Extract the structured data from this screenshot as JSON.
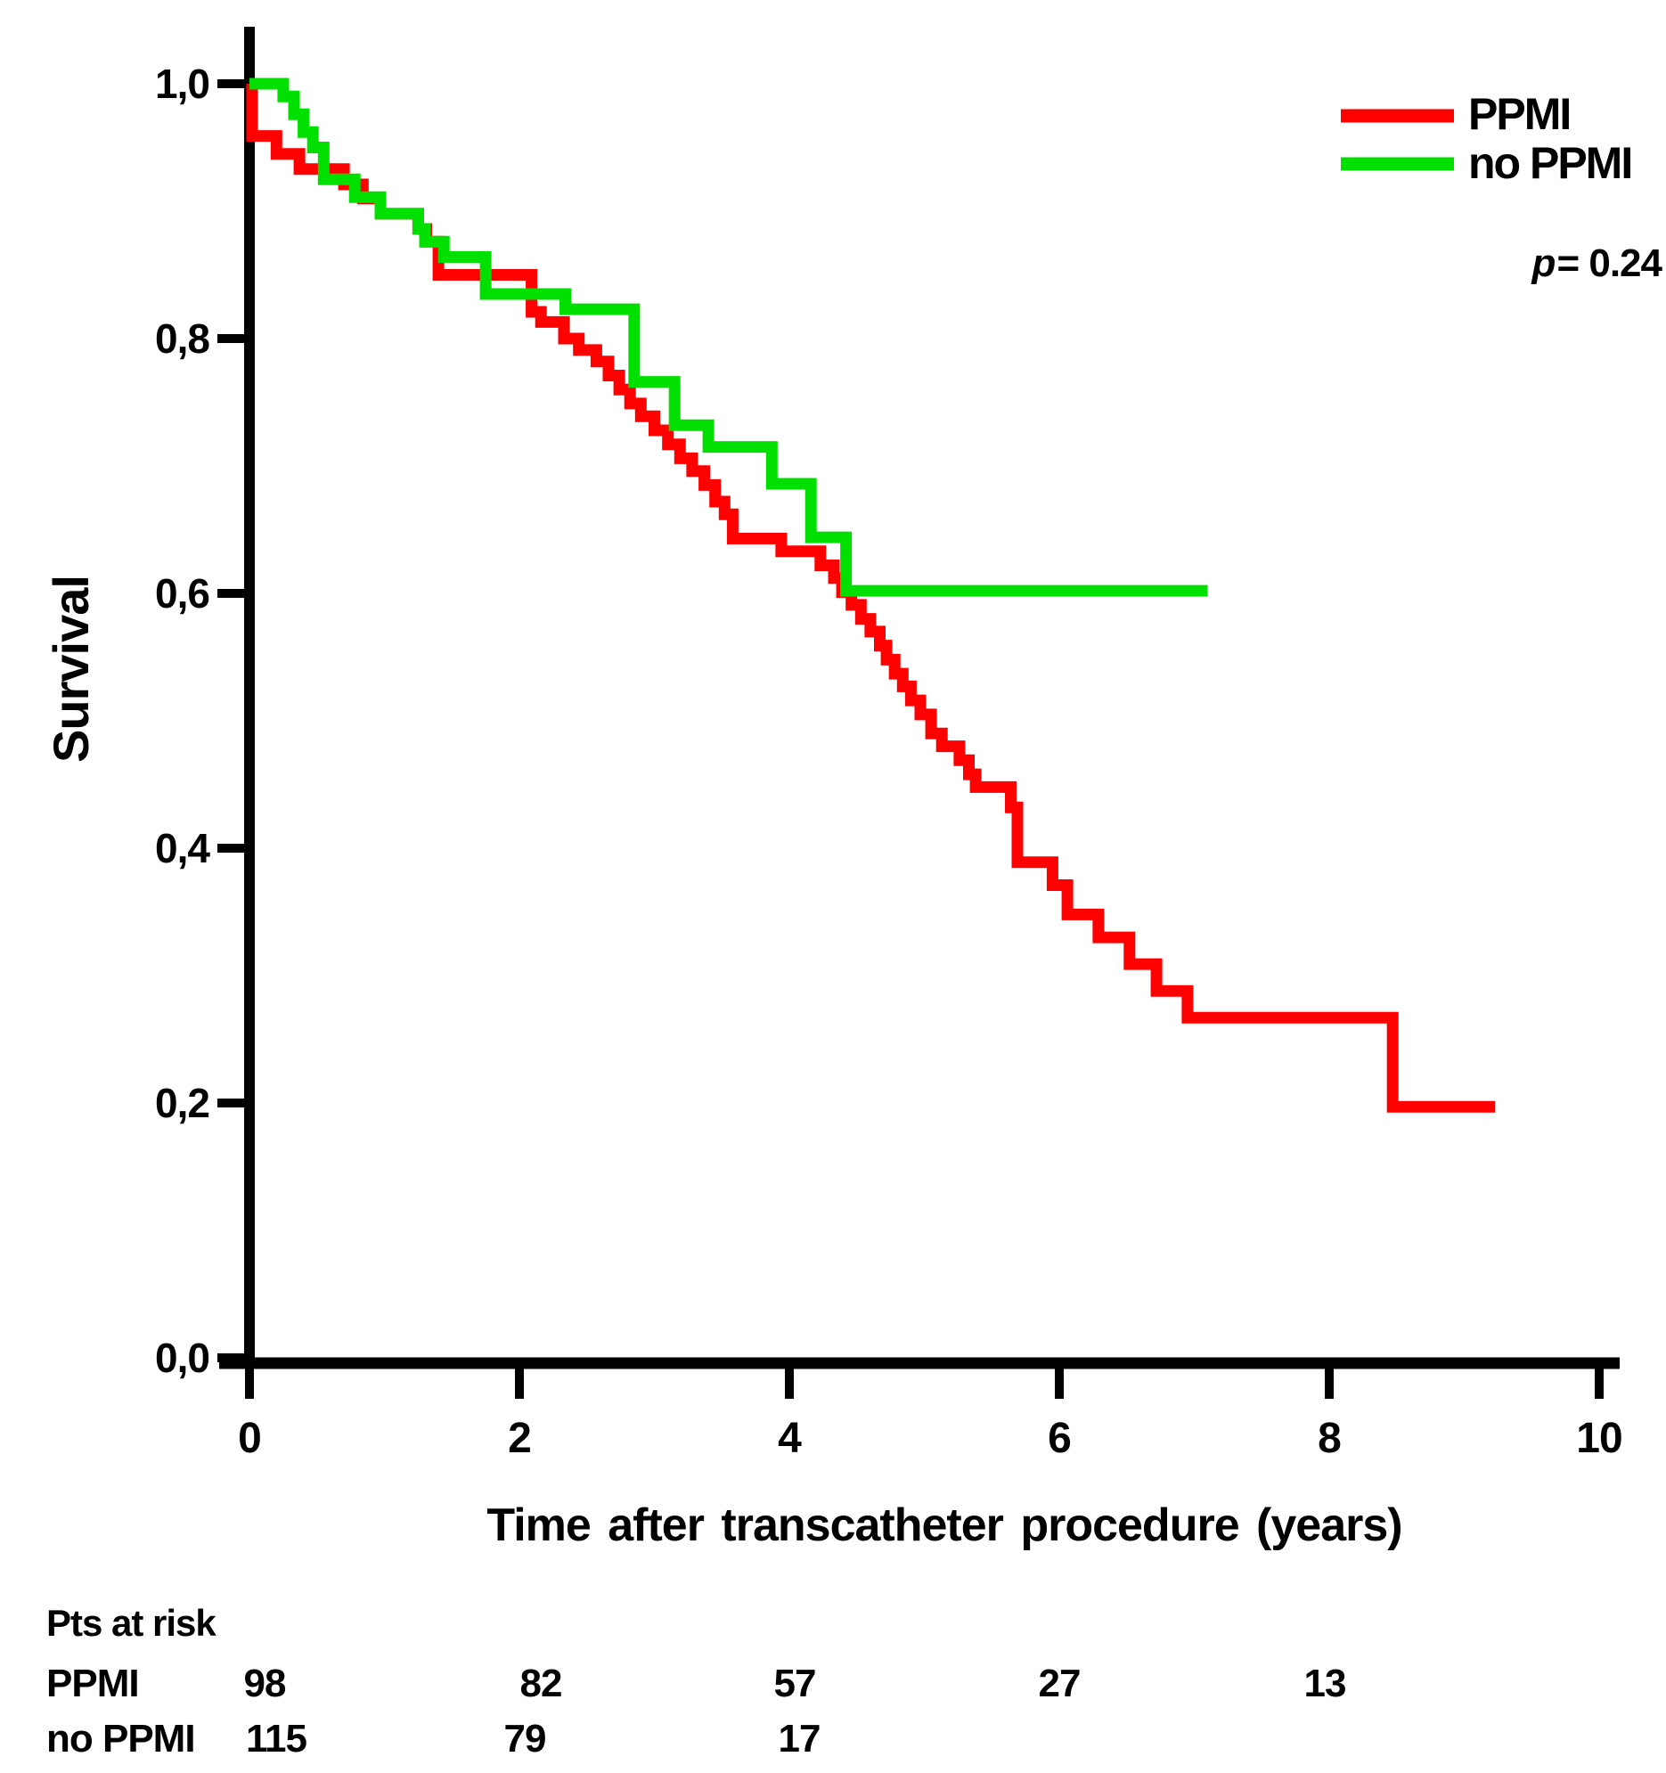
{
  "figure": {
    "p_symbol": "p",
    "p_value_text": "= 0.24",
    "legend": [
      {
        "label": "PPMI",
        "color": "#ff0000"
      },
      {
        "label": "no PPMI",
        "color": "#00e000"
      }
    ]
  },
  "chart_data": {
    "type": "line",
    "subtype": "kaplan-meier-step",
    "title": "",
    "xlabel": "Time after transcatheter procedure (years)",
    "ylabel": "Survival",
    "xlim": [
      0,
      10
    ],
    "ylim": [
      0.0,
      1.05
    ],
    "grid": false,
    "legend_position": "top-right",
    "x_ticks": [
      0,
      2,
      4,
      6,
      8,
      10
    ],
    "x_tick_labels": [
      "0",
      "2",
      "4",
      "6",
      "8",
      "10"
    ],
    "y_ticks": [
      1.0,
      0.8,
      0.6,
      0.4,
      0.2,
      0.0
    ],
    "y_tick_labels": [
      "1,0",
      "0,8",
      "0,6",
      "0,4",
      "0,2",
      "0,0"
    ],
    "annotation_p": "p= 0.24",
    "series": [
      {
        "name": "PPMI",
        "color": "#ff0000",
        "end_x": 9.23,
        "points": [
          [
            0.0,
            1.0
          ],
          [
            0.02,
            0.959
          ],
          [
            0.2,
            0.945
          ],
          [
            0.37,
            0.933
          ],
          [
            0.7,
            0.921
          ],
          [
            0.84,
            0.91
          ],
          [
            0.97,
            0.898
          ],
          [
            1.25,
            0.886
          ],
          [
            1.31,
            0.876
          ],
          [
            1.4,
            0.85
          ],
          [
            2.09,
            0.821
          ],
          [
            2.16,
            0.813
          ],
          [
            2.33,
            0.8
          ],
          [
            2.44,
            0.791
          ],
          [
            2.57,
            0.782
          ],
          [
            2.66,
            0.771
          ],
          [
            2.74,
            0.76
          ],
          [
            2.82,
            0.749
          ],
          [
            2.9,
            0.739
          ],
          [
            3.0,
            0.728
          ],
          [
            3.1,
            0.717
          ],
          [
            3.19,
            0.706
          ],
          [
            3.28,
            0.696
          ],
          [
            3.37,
            0.685
          ],
          [
            3.45,
            0.672
          ],
          [
            3.52,
            0.662
          ],
          [
            3.58,
            0.643
          ],
          [
            3.94,
            0.633
          ],
          [
            4.23,
            0.622
          ],
          [
            4.33,
            0.612
          ],
          [
            4.39,
            0.601
          ],
          [
            4.46,
            0.591
          ],
          [
            4.53,
            0.58
          ],
          [
            4.6,
            0.57
          ],
          [
            4.67,
            0.559
          ],
          [
            4.72,
            0.548
          ],
          [
            4.78,
            0.537
          ],
          [
            4.84,
            0.527
          ],
          [
            4.9,
            0.516
          ],
          [
            4.97,
            0.505
          ],
          [
            5.05,
            0.49
          ],
          [
            5.13,
            0.48
          ],
          [
            5.26,
            0.469
          ],
          [
            5.33,
            0.458
          ],
          [
            5.38,
            0.448
          ],
          [
            5.64,
            0.432
          ],
          [
            5.69,
            0.389
          ],
          [
            5.95,
            0.371
          ],
          [
            6.06,
            0.348
          ],
          [
            6.29,
            0.33
          ],
          [
            6.52,
            0.309
          ],
          [
            6.72,
            0.288
          ],
          [
            6.95,
            0.267
          ],
          [
            8.47,
            0.197
          ]
        ]
      },
      {
        "name": "no PPMI",
        "color": "#00e000",
        "end_x": 7.1,
        "points": [
          [
            0.0,
            1.0
          ],
          [
            0.25,
            0.99
          ],
          [
            0.33,
            0.976
          ],
          [
            0.4,
            0.962
          ],
          [
            0.47,
            0.95
          ],
          [
            0.55,
            0.925
          ],
          [
            0.78,
            0.911
          ],
          [
            0.97,
            0.898
          ],
          [
            1.25,
            0.886
          ],
          [
            1.3,
            0.876
          ],
          [
            1.44,
            0.864
          ],
          [
            1.75,
            0.835
          ],
          [
            2.34,
            0.823
          ],
          [
            2.85,
            0.766
          ],
          [
            3.15,
            0.732
          ],
          [
            3.4,
            0.715
          ],
          [
            3.87,
            0.686
          ],
          [
            4.16,
            0.644
          ],
          [
            4.42,
            0.602
          ]
        ]
      }
    ]
  },
  "risk_table": {
    "header": "Pts at risk",
    "rows": [
      {
        "label": "PPMI",
        "values": [
          "98",
          "82",
          "57",
          "27",
          "13"
        ]
      },
      {
        "label": "no PPMI",
        "values": [
          "115",
          "79",
          "17"
        ]
      }
    ]
  }
}
